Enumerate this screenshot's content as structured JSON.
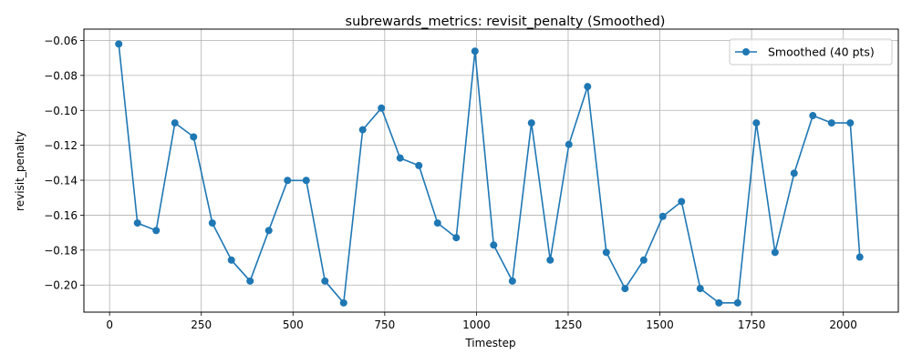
{
  "chart_data": {
    "type": "line",
    "title": "subrewards_metrics: revisit_penalty (Smoothed)",
    "xlabel": "Timestep",
    "ylabel": "revisit_penalty",
    "xlim": [
      -70,
      2150
    ],
    "ylim": [
      -0.2155,
      -0.0535
    ],
    "xticks": [
      0,
      250,
      500,
      750,
      1000,
      1250,
      1500,
      1750,
      2000
    ],
    "xtick_labels": [
      "0",
      "250",
      "500",
      "750",
      "1000",
      "1250",
      "1500",
      "1750",
      "2000"
    ],
    "yticks": [
      -0.2,
      -0.18,
      -0.16,
      -0.14,
      -0.12,
      -0.1,
      -0.08,
      -0.06
    ],
    "ytick_labels": [
      "−0.20",
      "−0.18",
      "−0.16",
      "−0.14",
      "−0.12",
      "−0.10",
      "−0.08",
      "−0.06"
    ],
    "grid": true,
    "legend_position": "top-right",
    "color": "#1f77b4",
    "series": [
      {
        "name": "Smoothed (40 pts)",
        "x": [
          25,
          76,
          127,
          178,
          229,
          280,
          332,
          383,
          434,
          485,
          536,
          587,
          638,
          690,
          741,
          792,
          843,
          894,
          945,
          996,
          1047,
          1098,
          1150,
          1201,
          1252,
          1303,
          1354,
          1405,
          1456,
          1508,
          1559,
          1610,
          1661,
          1712,
          1763,
          1814,
          1866,
          1917,
          1968,
          2019,
          2045
        ],
        "y": [
          -0.062,
          -0.1645,
          -0.1688,
          -0.1072,
          -0.1152,
          -0.1645,
          -0.1857,
          -0.1977,
          -0.1688,
          -0.1401,
          -0.1401,
          -0.1977,
          -0.2102,
          -0.1111,
          -0.0987,
          -0.1273,
          -0.1316,
          -0.1645,
          -0.1729,
          -0.0661,
          -0.1771,
          -0.1977,
          -0.1072,
          -0.1857,
          -0.1195,
          -0.0864,
          -0.1813,
          -0.202,
          -0.1857,
          -0.1607,
          -0.1522,
          -0.202,
          -0.2102,
          -0.2102,
          -0.1072,
          -0.1813,
          -0.136,
          -0.103,
          -0.1072,
          -0.1072,
          -0.184
        ]
      }
    ]
  }
}
